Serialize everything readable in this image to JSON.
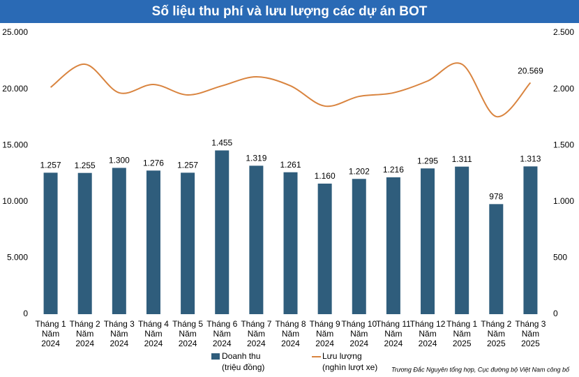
{
  "chart_data": {
    "type": "bar-line",
    "title": "Số liệu thu phí và lưu lượng các dự án BOT",
    "source": "Trương Đắc Nguyên tổng hợp, Cục đường bộ Việt Nam công bố",
    "categories": [
      [
        "Tháng 1",
        "Năm",
        "2024"
      ],
      [
        "Tháng 2",
        "Năm",
        "2024"
      ],
      [
        "Tháng 3",
        "Năm",
        "2024"
      ],
      [
        "Tháng 4",
        "Năm",
        "2024"
      ],
      [
        "Tháng 5",
        "Năm",
        "2024"
      ],
      [
        "Tháng 6",
        "Năm",
        "2024"
      ],
      [
        "Tháng 7",
        "Năm",
        "2024"
      ],
      [
        "Tháng 8",
        "Năm",
        "2024"
      ],
      [
        "Tháng 9",
        "Năm",
        "2024"
      ],
      [
        "Tháng 10",
        "Năm",
        "2024"
      ],
      [
        "Tháng 11",
        "Năm",
        "2024"
      ],
      [
        "Tháng 12",
        "Năm",
        "2024"
      ],
      [
        "Tháng 1",
        "Năm",
        "2025"
      ],
      [
        "Tháng 2",
        "Năm",
        "2025"
      ],
      [
        "Tháng 3",
        "Năm",
        "2025"
      ]
    ],
    "series": [
      {
        "name": "Doanh thu",
        "unit": "(triệu đồng)",
        "type": "bar",
        "axis": "y2",
        "color": "#2f5d7c",
        "values": [
          1257,
          1255,
          1300,
          1276,
          1257,
          1455,
          1319,
          1261,
          1160,
          1202,
          1216,
          1295,
          1311,
          978,
          1313
        ],
        "value_labels": [
          "1.257",
          "1.255",
          "1.300",
          "1.276",
          "1.257",
          "1.455",
          "1.319",
          "1.261",
          "1.160",
          "1.202",
          "1.216",
          "1.295",
          "1.311",
          "978",
          "1.313"
        ]
      },
      {
        "name": "Lưu lượng",
        "unit": "(nghìn lượt xe)",
        "type": "line",
        "axis": "y",
        "color": "#d9843f",
        "values": [
          20160,
          22210,
          19670,
          20410,
          19480,
          20290,
          21090,
          20290,
          18490,
          19350,
          19670,
          20720,
          22210,
          17560,
          20569
        ],
        "value_labels": [
          null,
          null,
          null,
          null,
          null,
          null,
          null,
          null,
          null,
          null,
          null,
          null,
          null,
          null,
          "20.569"
        ]
      }
    ],
    "ylim": [
      0,
      25000
    ],
    "yticks": [
      0,
      {
        "value": 5000,
        "label": "5.000"
      },
      {
        "value": 10000,
        "label": "10.000"
      },
      {
        "value": 15000,
        "label": "15.000"
      },
      {
        "value": 20000,
        "label": "20.000"
      },
      {
        "value": 25000,
        "label": "25.000"
      }
    ],
    "y2lim": [
      0,
      2500
    ],
    "y2ticks": [
      0,
      500,
      {
        "value": 1000,
        "label": "1.000"
      },
      {
        "value": 1500,
        "label": "1.500"
      },
      {
        "value": 2000,
        "label": "2.000"
      },
      {
        "value": 2500,
        "label": "2.500"
      }
    ]
  }
}
